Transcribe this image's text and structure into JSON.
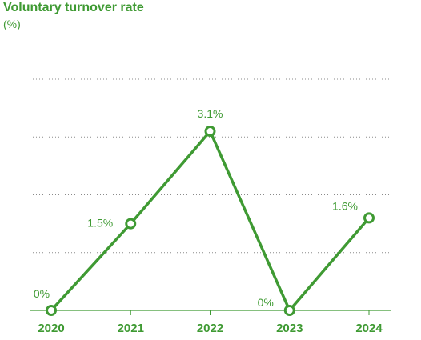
{
  "chart_data": {
    "type": "line",
    "title": "Voluntary turnover rate",
    "subtitle": "(%)",
    "categories": [
      "2020",
      "2021",
      "2022",
      "2023",
      "2024"
    ],
    "series": [
      {
        "values": [
          0,
          1.5,
          3.1,
          0,
          1.6
        ],
        "labels": [
          "0%",
          "1.5%",
          "3.1%",
          "0%",
          "1.6%"
        ]
      }
    ],
    "ylim": [
      0,
      4
    ],
    "grid": true,
    "color": "#3f9a33"
  }
}
